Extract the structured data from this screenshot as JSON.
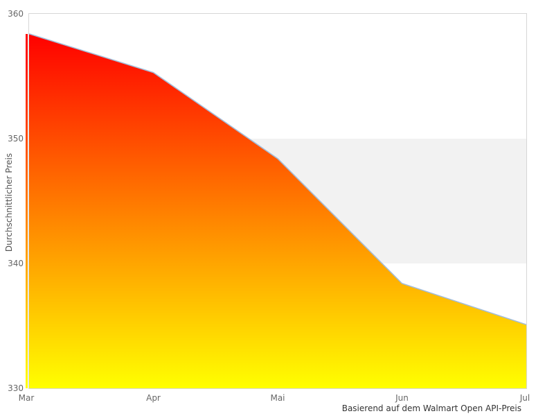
{
  "chart_data": {
    "type": "area",
    "categories": [
      "Mar",
      "Apr",
      "Mai",
      "Jun",
      "Jul"
    ],
    "values": [
      358.4,
      355.3,
      348.4,
      338.4,
      335.1
    ],
    "title": "",
    "xlabel": "",
    "ylabel": "Durchschnittlicher Preis",
    "caption": "Basierend auf dem Walmart Open API-Preis",
    "ylim": [
      330,
      360
    ],
    "yticks": [
      330,
      340,
      350,
      360
    ],
    "grid": "off",
    "legend": "none",
    "band": {
      "from": 340,
      "to": 350,
      "color": "#f2f2f2"
    },
    "colors": {
      "gradient_top": "#ff0000",
      "gradient_bottom": "#ffff00",
      "line": "#a4bdd9",
      "plot_border": "#d6d6d6",
      "tick_text": "#666666",
      "caption_text": "#333333"
    }
  }
}
